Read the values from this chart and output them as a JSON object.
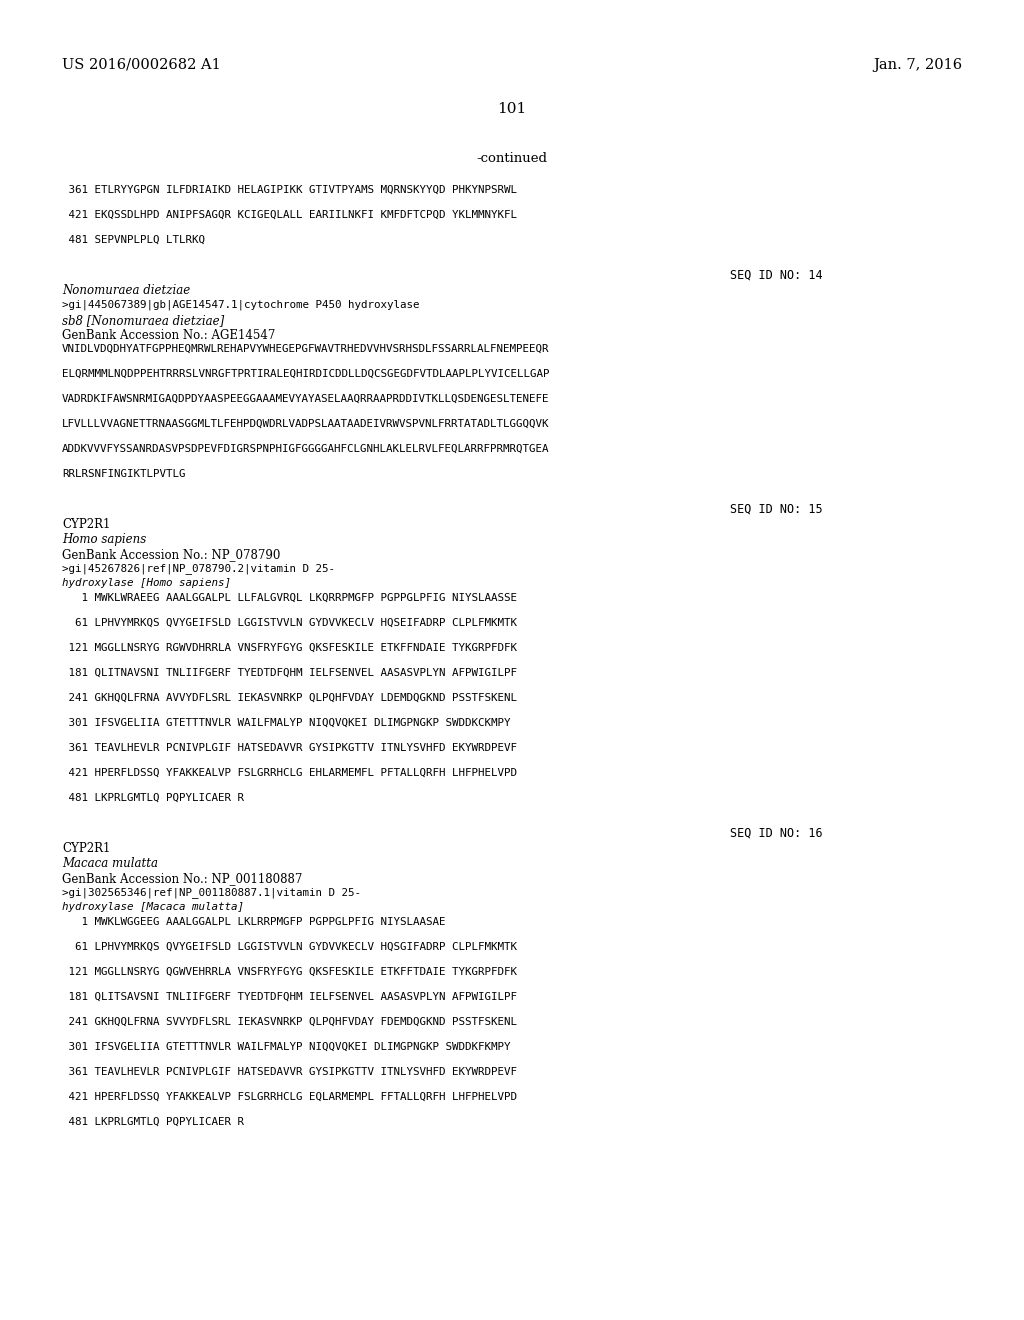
{
  "bg_color": "#ffffff",
  "header_left": "US 2016/0002682 A1",
  "header_right": "Jan. 7, 2016",
  "page_number": "101",
  "continued": "-continued",
  "lines": [
    {
      "type": "mono",
      "text": " 361 ETLRYYGPGN ILFDRIAIKD HELAGIPIKK GTIVTPYAMS MQRNSKYYQD PHKYNPSRWL"
    },
    {
      "type": "blank"
    },
    {
      "type": "mono",
      "text": " 421 EKQSSDLHPD ANIPFSAGQR KCIGEQLALL EARIILNKFI KMFDFTCPQD YKLMMNYKFL"
    },
    {
      "type": "blank"
    },
    {
      "type": "mono",
      "text": " 481 SEPVNPLPLQ LTLRKQ"
    },
    {
      "type": "blank"
    },
    {
      "type": "blank"
    },
    {
      "type": "seqid",
      "text": "SEQ ID NO: 14"
    },
    {
      "type": "italic",
      "text": "Nonomuraea dietziae"
    },
    {
      "type": "mono_small",
      "text": ">gi|445067389|gb|AGE14547.1|cytochrome P450 hydroxylase"
    },
    {
      "type": "italic",
      "text": "sb8 [Nonomuraea dietziae]"
    },
    {
      "type": "normal",
      "text": "GenBank Accession No.: AGE14547"
    },
    {
      "type": "mono",
      "text": "VNIDLVDQDHYATFGPPHEQMRWLREHAPVYWHEGEPGFWAVTRHEDVVHVSRHSDLFSSARRLALFNEMPEEQR"
    },
    {
      "type": "blank"
    },
    {
      "type": "mono",
      "text": "ELQRMMMLNQDPPEHTRRRSLVNRGFTPRTIRALEQHIRDICDDLLDQCSGEGDFVTDLAAPLPLYVICELLGAP"
    },
    {
      "type": "blank"
    },
    {
      "type": "mono",
      "text": "VADRDKIFAWSNRMIGAQDPDYAASPEEGGAAAMEVYAYASELAAQRRAAPRDDIVTKLLQSDENGESLTENEFE"
    },
    {
      "type": "blank"
    },
    {
      "type": "mono",
      "text": "LFVLLLVVAGNETTRNAASGGMLTLFEHPDQWDRLVADPSLAATAADEIVRWVSPVNLFRRTATADLTLGGQQVK"
    },
    {
      "type": "blank"
    },
    {
      "type": "mono",
      "text": "ADDKVVVFYSSANRDASVPSDPEVFDIGRSPNPHIGFGGGGAHFCLGNHLAKLELRVLFEQLARRFPRMRQTGEA"
    },
    {
      "type": "blank"
    },
    {
      "type": "mono",
      "text": "RRLRSNFINGIKTLPVTLG"
    },
    {
      "type": "blank"
    },
    {
      "type": "blank"
    },
    {
      "type": "seqid",
      "text": "SEQ ID NO: 15"
    },
    {
      "type": "normal",
      "text": "CYP2R1"
    },
    {
      "type": "italic",
      "text": "Homo sapiens"
    },
    {
      "type": "normal",
      "text": "GenBank Accession No.: NP_078790"
    },
    {
      "type": "mono_small",
      "text": ">gi|45267826|ref|NP_078790.2|vitamin D 25-"
    },
    {
      "type": "mono_small2",
      "text": "hydroxylase [Homo sapiens]"
    },
    {
      "type": "mono",
      "text": "   1 MWKLWRAEEG AAALGGALPL LLFALGVRQL LKQRRPMGFP PGPPGLPFIG NIYSLAASSE"
    },
    {
      "type": "blank"
    },
    {
      "type": "mono",
      "text": "  61 LPHVYMRKQS QVYGEIFSLD LGGISTVVLN GYDVVKECLV HQSEIFADRP CLPLFMKMTK"
    },
    {
      "type": "blank"
    },
    {
      "type": "mono",
      "text": " 121 MGGLLNSRYG RGWVDHRRLA VNSFRYFGYG QKSFESKILE ETKFFNDAIE TYKGRPFDFK"
    },
    {
      "type": "blank"
    },
    {
      "type": "mono",
      "text": " 181 QLITNAVSNI TNLIIFGERF TYEDTDFQHM IELFSENVEL AASASVPLYN AFPWIGILPF"
    },
    {
      "type": "blank"
    },
    {
      "type": "mono",
      "text": " 241 GKHQQLFRNA AVVYDFLSRL IEKASVNRKP QLPQHFVDAY LDEMDQGKND PSSTFSKENL"
    },
    {
      "type": "blank"
    },
    {
      "type": "mono",
      "text": " 301 IFSVGELIIA GTETTTNVLR WAILFMALYP NIQQVQKEI DLIMGPNGKP SWDDKCKMPY"
    },
    {
      "type": "blank"
    },
    {
      "type": "mono",
      "text": " 361 TEAVLHEVLR PCNIVPLGIF HATSEDAVVR GYSIPKGTTV ITNLYSVHFD EKYWRDPEVF"
    },
    {
      "type": "blank"
    },
    {
      "type": "mono",
      "text": " 421 HPERFLDSSQ YFAKKEALVP FSLGRRHCLG EHLARMEMFL PFTALLQRFH LHFPHELVPD"
    },
    {
      "type": "blank"
    },
    {
      "type": "mono",
      "text": " 481 LKPRLGMTLQ PQPYLICAER R"
    },
    {
      "type": "blank"
    },
    {
      "type": "blank"
    },
    {
      "type": "seqid",
      "text": "SEQ ID NO: 16"
    },
    {
      "type": "normal",
      "text": "CYP2R1"
    },
    {
      "type": "italic",
      "text": "Macaca mulatta"
    },
    {
      "type": "normal",
      "text": "GenBank Accession No.: NP_001180887"
    },
    {
      "type": "mono_small",
      "text": ">gi|302565346|ref|NP_001180887.1|vitamin D 25-"
    },
    {
      "type": "mono_small2",
      "text": "hydroxylase [Macaca mulatta]"
    },
    {
      "type": "mono",
      "text": "   1 MWKLWGGEEG AAALGGALPL LKLRRPMGFP PGPPGLPFIG NIYSLAASAE"
    },
    {
      "type": "blank"
    },
    {
      "type": "mono",
      "text": "  61 LPHVYMRKQS QVYGEIFSLD LGGISTVVLN GYDVVKECLV HQSGIFADRP CLPLFMKMTK"
    },
    {
      "type": "blank"
    },
    {
      "type": "mono",
      "text": " 121 MGGLLNSRYG QGWVEHRRLA VNSFRYFGYG QKSFESKILE ETKFFTDAIE TYKGRPFDFK"
    },
    {
      "type": "blank"
    },
    {
      "type": "mono",
      "text": " 181 QLITSAVSNI TNLIIFGERF TYEDTDFQHM IELFSENVEL AASASVPLYN AFPWIGILPF"
    },
    {
      "type": "blank"
    },
    {
      "type": "mono",
      "text": " 241 GKHQQLFRNA SVVYDFLSRL IEKASVNRKP QLPQHFVDAY FDEMDQGKND PSSTFSKENL"
    },
    {
      "type": "blank"
    },
    {
      "type": "mono",
      "text": " 301 IFSVGELIIA GTETTTNVLR WAILFMALYP NIQQVQKEI DLIMGPNGKP SWDDKFKMPY"
    },
    {
      "type": "blank"
    },
    {
      "type": "mono",
      "text": " 361 TEAVLHEVLR PCNIVPLGIF HATSEDAVVR GYSIPKGTTV ITNLYSVHFD EKYWRDPEVF"
    },
    {
      "type": "blank"
    },
    {
      "type": "mono",
      "text": " 421 HPERFLDSSQ YFAKKEALVP FSLGRRHCLG EQLARMEMPL FFTALLQRFH LHFPHELVPD"
    },
    {
      "type": "blank"
    },
    {
      "type": "mono",
      "text": " 481 LKPRLGMTLQ PQPYLICAER R"
    }
  ]
}
